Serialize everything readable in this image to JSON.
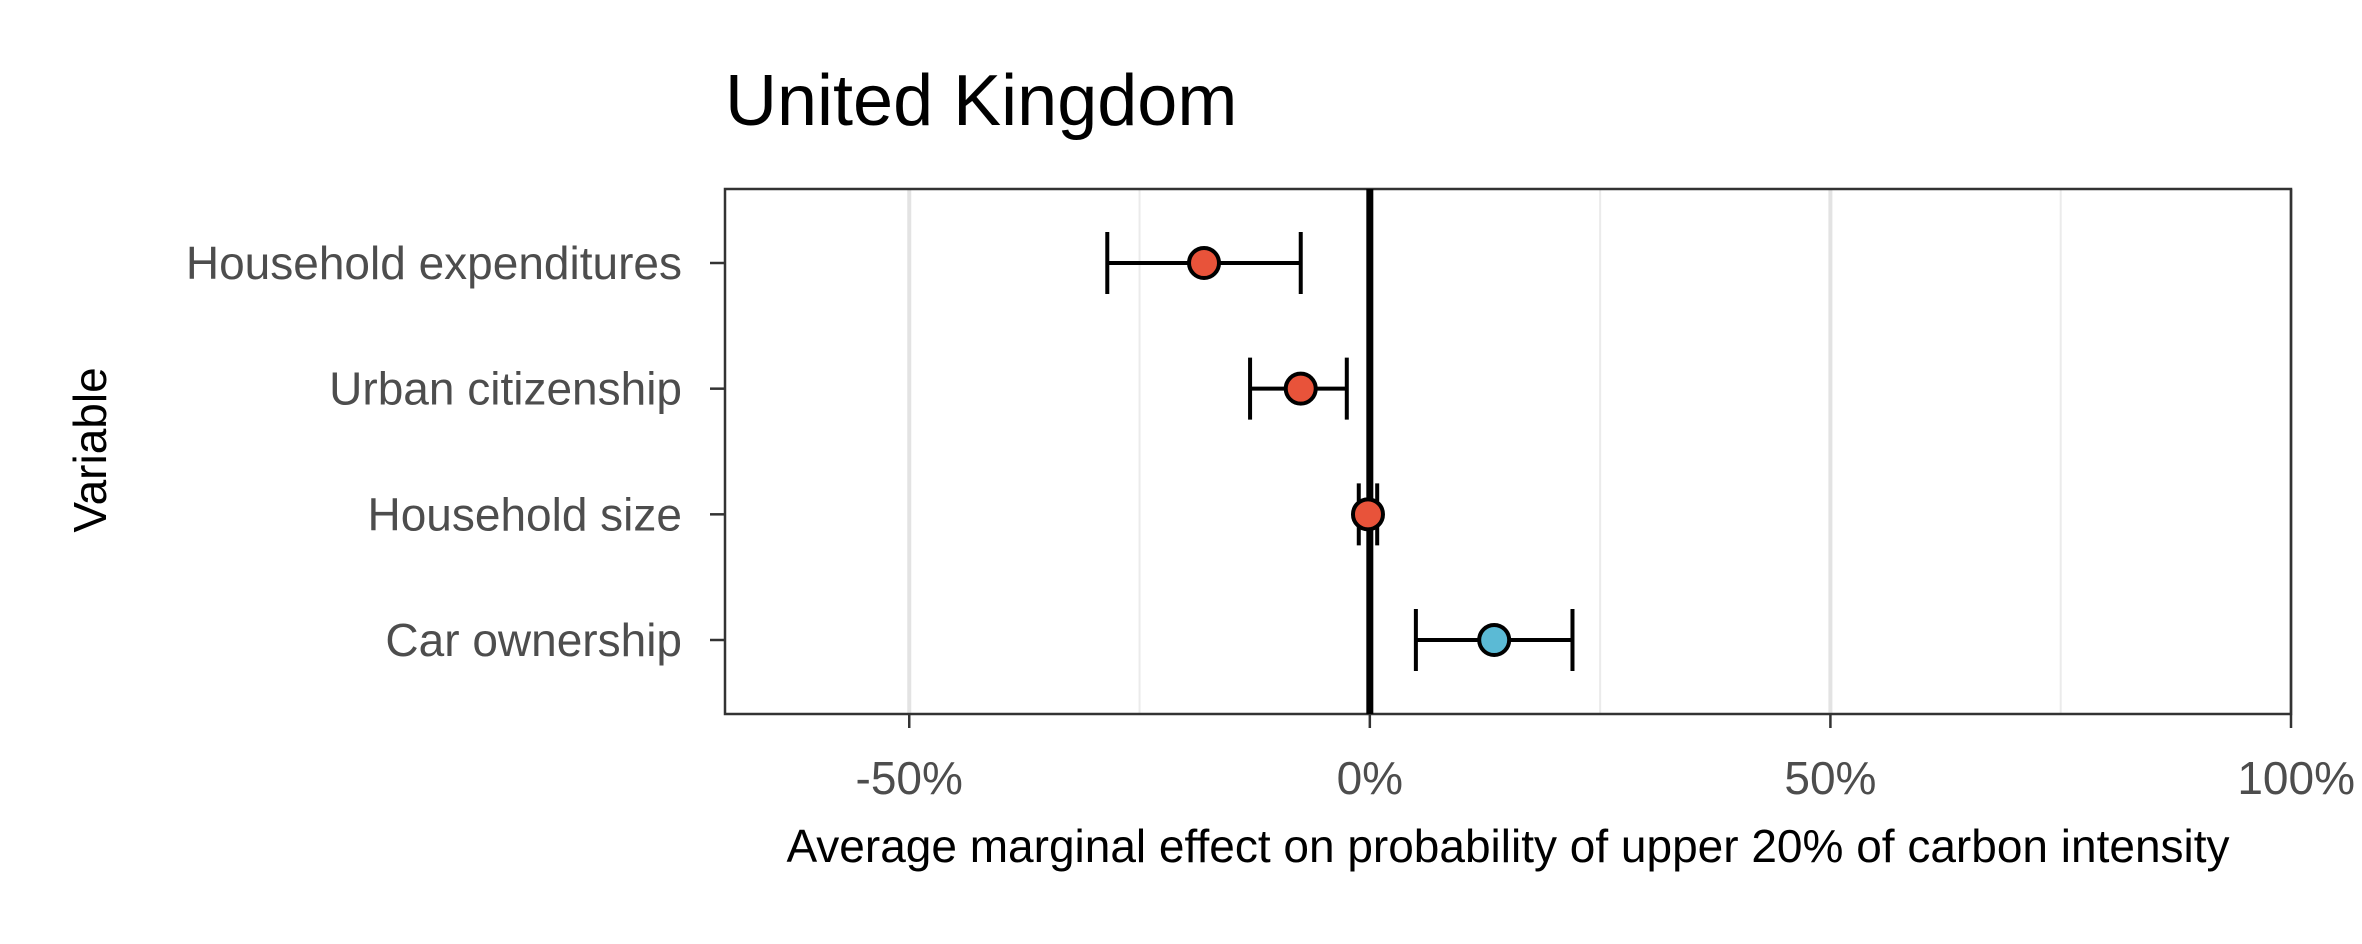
{
  "chart_data": {
    "type": "scatter",
    "title": "United Kingdom",
    "xlabel": "Average marginal effect on probability of upper 20% of carbon intensity",
    "ylabel": "Variable",
    "xlim": [
      -70,
      100
    ],
    "x_ticks": [
      -50,
      0,
      50,
      100
    ],
    "x_tick_labels": [
      "-50%",
      "0%",
      "50%",
      "100%"
    ],
    "minor_grid_x": [
      -25,
      25,
      75
    ],
    "grid": true,
    "reference_line_x": 0,
    "categories": [
      "Household expenditures",
      "Urban citizenship",
      "Household size",
      "Car ownership"
    ],
    "points": [
      {
        "label": "Household expenditures",
        "estimate": -18,
        "lower": -28.5,
        "upper": -7.5,
        "color": "#e8533a"
      },
      {
        "label": "Urban citizenship",
        "estimate": -7.5,
        "lower": -13,
        "upper": -2.5,
        "color": "#e8533a"
      },
      {
        "label": "Household size",
        "estimate": -0.2,
        "lower": -1.2,
        "upper": 0.8,
        "color": "#e8533a"
      },
      {
        "label": "Car ownership",
        "estimate": 13.5,
        "lower": 5,
        "upper": 22,
        "color": "#5bbad5"
      }
    ]
  }
}
